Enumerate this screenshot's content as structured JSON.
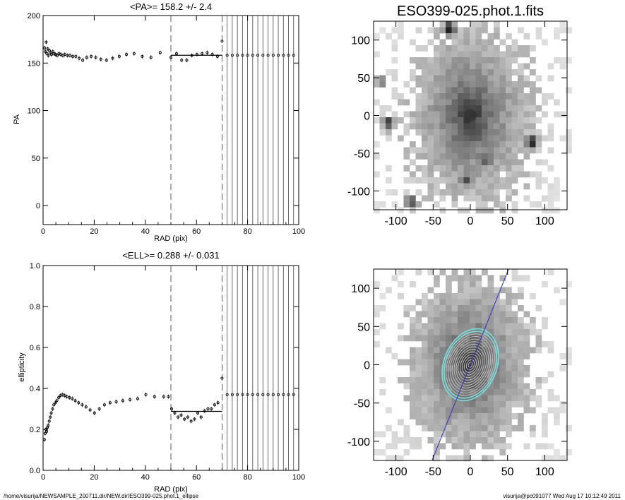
{
  "chart_data": [
    {
      "type": "scatter",
      "title": "<PA>= 158.2 +/-   2.4",
      "xlabel": "RAD (pix)",
      "ylabel": "PA",
      "xlim": [
        0,
        100
      ],
      "ylim": [
        -20,
        200
      ],
      "x_ticks": [
        "0",
        "20",
        "40",
        "60",
        "80",
        "100"
      ],
      "y_ticks": [
        "0",
        "50",
        "100",
        "150",
        "200"
      ],
      "dashed_x": [
        50,
        70
      ],
      "grid_x_start": 70,
      "grid_x_step": 2,
      "reference_value": 158.2,
      "series": [
        {
          "x": [
            0.6,
            0.9,
            1.2,
            1.5,
            1.8,
            2.1,
            2.5,
            2.9,
            3.3,
            3.8,
            4.3,
            4.9,
            5.5,
            6.2,
            6.9,
            7.7,
            8.5,
            9.5,
            10.5,
            11.6,
            12.8,
            14.1,
            15.5,
            17.1,
            18.8,
            20.6,
            22.6,
            24.8,
            27.2,
            29.8,
            32.6,
            35.6,
            38.8,
            42.2,
            45.8,
            50.0,
            52.2,
            54.2,
            56.2,
            58.2,
            60.2,
            62.2,
            64.2,
            66.2,
            68.2,
            70.0,
            72.0,
            74.0,
            76.0,
            78.0,
            80.0,
            82.0,
            84.0,
            86.0,
            88.0,
            90.0,
            92.0,
            94.0,
            96.0,
            98.0
          ],
          "y": [
            166,
            162,
            172,
            160,
            165,
            158,
            163,
            161,
            159,
            162,
            160,
            159,
            158,
            160,
            159,
            158,
            159,
            158,
            158,
            157,
            157,
            155,
            153,
            156,
            157,
            156,
            154,
            153,
            155,
            157,
            159,
            160,
            157,
            156,
            161,
            156,
            160,
            153,
            153,
            158,
            159,
            160,
            161,
            159,
            157,
            173,
            158.2,
            158.2,
            158.2,
            158.2,
            158.2,
            158.2,
            158.2,
            158.2,
            158.2,
            158.2,
            158.2,
            158.2,
            158.2,
            158.2
          ]
        }
      ]
    },
    {
      "type": "scatter",
      "title": "<ELL>= 0.288 +/-  0.031",
      "xlabel": "RAD (pix)",
      "ylabel": "ellipticity",
      "xlim": [
        0,
        100
      ],
      "ylim": [
        0,
        1
      ],
      "x_ticks": [
        "0",
        "20",
        "40",
        "60",
        "80",
        "100"
      ],
      "y_ticks": [
        "0.0",
        "0.2",
        "0.4",
        "0.6",
        "0.8",
        "1.0"
      ],
      "dashed_x": [
        50,
        70
      ],
      "grid_x_start": 70,
      "grid_x_step": 2,
      "reference_value": 0.288,
      "series": [
        {
          "x": [
            0.5,
            0.8,
            1.1,
            1.4,
            1.7,
            2.0,
            2.4,
            2.8,
            3.2,
            3.7,
            4.2,
            4.8,
            5.4,
            6.1,
            6.8,
            7.6,
            8.4,
            9.3,
            10.3,
            11.4,
            12.6,
            13.9,
            15.3,
            16.8,
            18.4,
            20.1,
            22.0,
            24.0,
            26.2,
            28.6,
            31.2,
            34.0,
            37.0,
            40.2,
            43.6,
            47.2,
            49.0,
            50.3,
            51.5,
            52.8,
            54.0,
            55.3,
            56.6,
            57.9,
            59.2,
            60.5,
            61.8,
            63.2,
            64.5,
            65.8,
            67.1,
            68.4,
            70.0,
            72.0,
            74.0,
            76.0,
            78.0,
            80.0,
            82.0,
            84.0,
            86.0,
            88.0,
            90.0,
            92.0,
            94.0,
            96.0,
            98.0
          ],
          "y": [
            0.15,
            0.18,
            0.2,
            0.19,
            0.21,
            0.22,
            0.24,
            0.26,
            0.28,
            0.3,
            0.32,
            0.33,
            0.34,
            0.355,
            0.365,
            0.37,
            0.365,
            0.36,
            0.355,
            0.35,
            0.34,
            0.33,
            0.32,
            0.31,
            0.295,
            0.28,
            0.3,
            0.32,
            0.33,
            0.335,
            0.34,
            0.345,
            0.35,
            0.37,
            0.36,
            0.36,
            0.36,
            0.3,
            0.28,
            0.26,
            0.27,
            0.25,
            0.26,
            0.24,
            0.25,
            0.28,
            0.26,
            0.29,
            0.3,
            0.3,
            0.32,
            0.33,
            0.45,
            0.37,
            0.37,
            0.37,
            0.37,
            0.37,
            0.37,
            0.37,
            0.37,
            0.37,
            0.37,
            0.37,
            0.37,
            0.37,
            0.37
          ]
        }
      ]
    },
    {
      "type": "heatmap",
      "title": "ESO399-025.phot.1.fits",
      "xlim": [
        -130,
        130
      ],
      "ylim": [
        -125,
        125
      ],
      "x_ticks": [
        "-100",
        "-50",
        "0",
        "50",
        "100"
      ],
      "y_ticks": [
        "-100",
        "-50",
        "0",
        "50",
        "100"
      ]
    },
    {
      "type": "heatmap",
      "title": "",
      "xlim": [
        -130,
        130
      ],
      "ylim": [
        -125,
        125
      ],
      "x_ticks": [
        "-100",
        "-50",
        "0",
        "50",
        "100"
      ],
      "y_ticks": [
        "-100",
        "-50",
        "0",
        "50",
        "100"
      ],
      "ellipse_pa": 158.2,
      "ellipse_ell": 0.288,
      "outer_ellipse_radius": 50,
      "contour_color": "#bbbbbb",
      "outer_contour_color": "#7fd8d8",
      "major_axis_color": "#3333cc"
    }
  ],
  "footer": {
    "left": "/home/visurija/NEWSAMPLE_200711.dir/NEW.dir/ESO399-025.phot.1_ellipse",
    "right": "visurija@pc091077  Wed Aug 17 10:12:49 2011"
  }
}
